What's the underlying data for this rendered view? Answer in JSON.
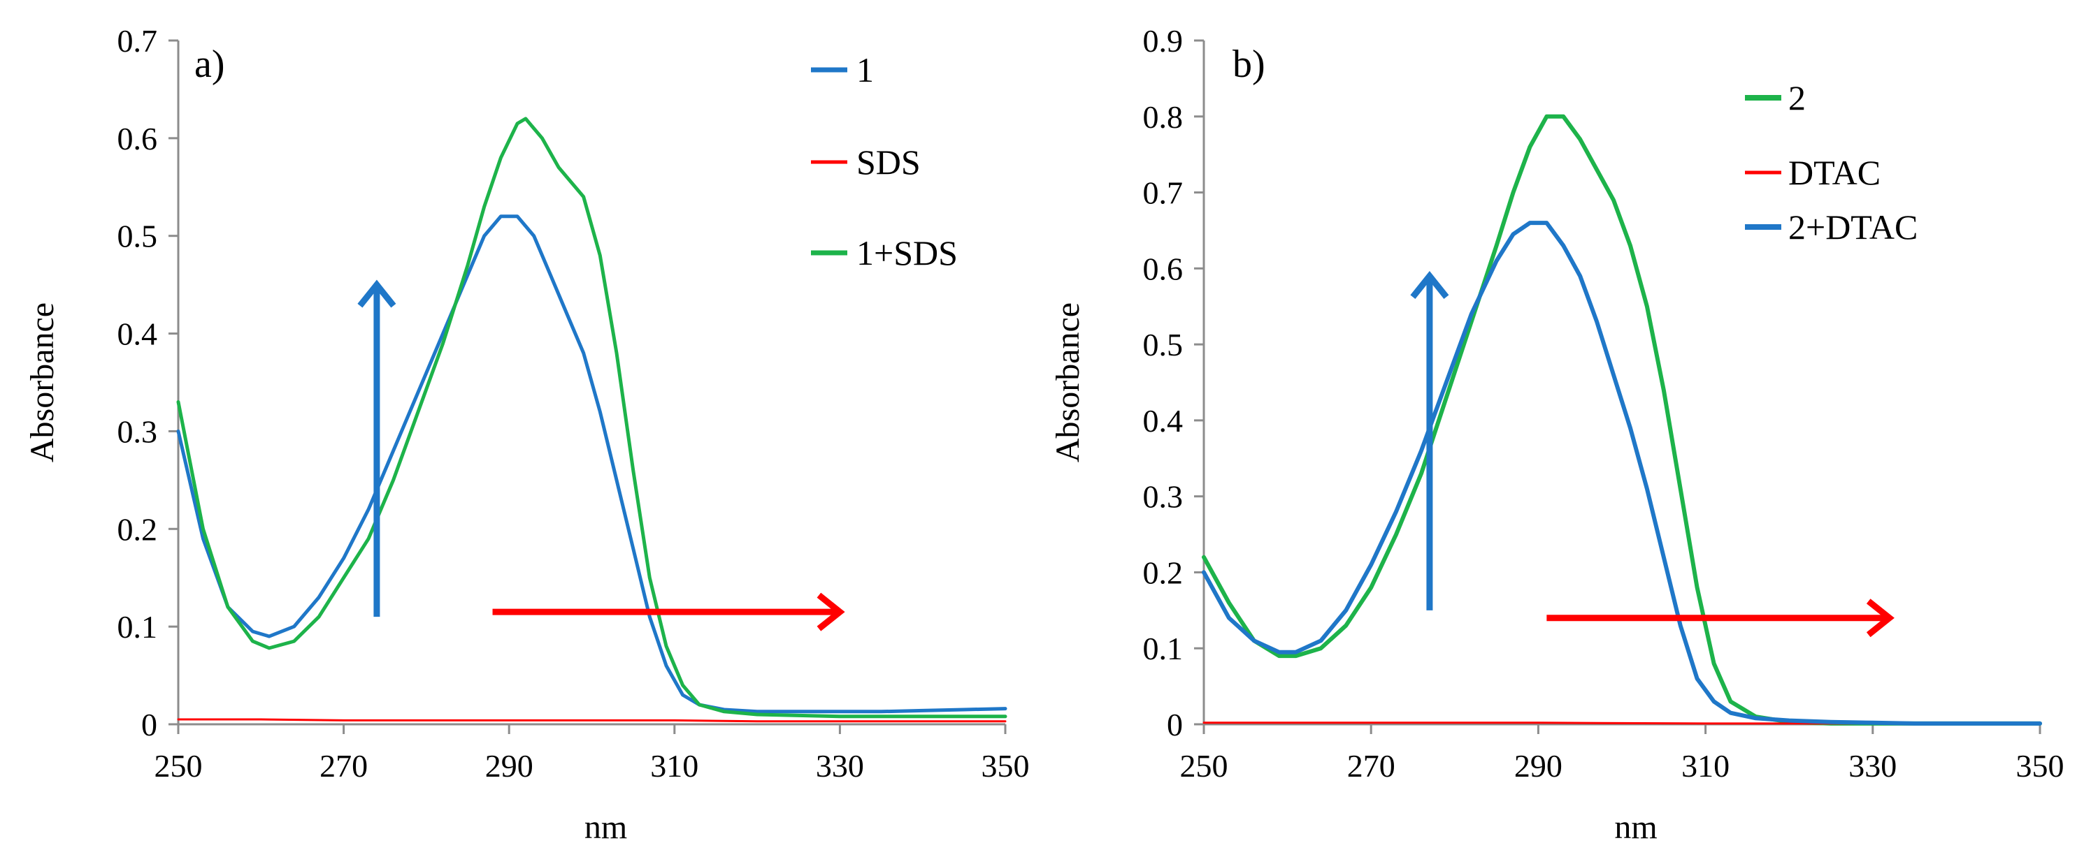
{
  "colors": {
    "blue": "#1f77c8",
    "red": "#ff0000",
    "green": "#1db34a",
    "axis": "#8c8c8c"
  },
  "chart_data": [
    {
      "type": "line",
      "panel_label": "a)",
      "xlabel": "nm",
      "ylabel": "Absorbance",
      "xlim": [
        250,
        350
      ],
      "ylim": [
        0,
        0.7
      ],
      "x_ticks": [
        250,
        270,
        290,
        310,
        330,
        350
      ],
      "x_tick_labels": [
        "250",
        "270",
        "290",
        "310",
        "330",
        "350"
      ],
      "y_ticks": [
        0,
        0.1,
        0.2,
        0.3,
        0.4,
        0.5,
        0.6,
        0.7
      ],
      "y_tick_labels": [
        "0",
        "0.1",
        "0.2",
        "0.3",
        "0.4",
        "0.5",
        "0.6",
        "0.7"
      ],
      "legend_position": "top-right",
      "series": [
        {
          "name": "1",
          "color": "blue",
          "width": 5,
          "x": [
            250,
            253,
            256,
            259,
            261,
            264,
            267,
            270,
            273,
            276,
            279,
            282,
            285,
            287,
            289,
            291,
            293,
            295,
            297,
            299,
            301,
            303,
            305,
            307,
            309,
            311,
            313,
            316,
            320,
            325,
            330,
            335,
            340,
            345,
            350
          ],
          "y": [
            0.3,
            0.19,
            0.12,
            0.095,
            0.09,
            0.1,
            0.13,
            0.17,
            0.22,
            0.28,
            0.34,
            0.4,
            0.46,
            0.5,
            0.52,
            0.52,
            0.5,
            0.46,
            0.42,
            0.38,
            0.32,
            0.25,
            0.18,
            0.11,
            0.06,
            0.03,
            0.02,
            0.015,
            0.013,
            0.013,
            0.013,
            0.013,
            0.014,
            0.015,
            0.016
          ]
        },
        {
          "name": "SDS",
          "color": "red",
          "width": 3,
          "x": [
            250,
            260,
            270,
            280,
            290,
            300,
            310,
            320,
            330,
            340,
            350
          ],
          "y": [
            0.005,
            0.005,
            0.004,
            0.004,
            0.004,
            0.004,
            0.004,
            0.003,
            0.003,
            0.003,
            0.003
          ]
        },
        {
          "name": "1+SDS",
          "color": "green",
          "width": 5,
          "x": [
            250,
            253,
            256,
            259,
            261,
            264,
            267,
            270,
            273,
            276,
            279,
            282,
            285,
            287,
            289,
            291,
            292,
            294,
            296,
            299,
            301,
            303,
            305,
            307,
            309,
            311,
            313,
            316,
            320,
            325,
            330,
            335,
            340,
            345,
            350
          ],
          "y": [
            0.33,
            0.2,
            0.12,
            0.085,
            0.078,
            0.085,
            0.11,
            0.15,
            0.19,
            0.25,
            0.32,
            0.39,
            0.47,
            0.53,
            0.58,
            0.615,
            0.62,
            0.6,
            0.57,
            0.54,
            0.48,
            0.38,
            0.26,
            0.15,
            0.08,
            0.04,
            0.02,
            0.013,
            0.01,
            0.009,
            0.008,
            0.008,
            0.008,
            0.008,
            0.008
          ]
        }
      ],
      "annotations": [
        {
          "type": "arrow-up",
          "color": "blue",
          "x": 274,
          "y_from": 0.11,
          "y_to": 0.45
        },
        {
          "type": "arrow-right",
          "color": "red",
          "y": 0.115,
          "x_from": 288,
          "x_to": 330
        }
      ]
    },
    {
      "type": "line",
      "panel_label": "b)",
      "xlabel": "nm",
      "ylabel": "Absorbance",
      "xlim": [
        250,
        350
      ],
      "ylim": [
        0,
        0.9
      ],
      "x_ticks": [
        250,
        270,
        290,
        310,
        330,
        350
      ],
      "x_tick_labels": [
        "250",
        "270",
        "290",
        "310",
        "330",
        "350"
      ],
      "y_ticks": [
        0,
        0.1,
        0.2,
        0.3,
        0.4,
        0.5,
        0.6,
        0.7,
        0.8,
        0.9
      ],
      "y_tick_labels": [
        "0",
        "0.1",
        "0.2",
        "0.3",
        "0.4",
        "0.5",
        "0.6",
        "0.7",
        "0.8",
        "0.9"
      ],
      "legend_position": "top-right",
      "series": [
        {
          "name": "2",
          "color": "green",
          "width": 6,
          "x": [
            250,
            253,
            256,
            259,
            261,
            264,
            267,
            270,
            273,
            276,
            279,
            282,
            285,
            287,
            289,
            291,
            293,
            295,
            297,
            299,
            301,
            303,
            305,
            307,
            309,
            311,
            313,
            316,
            320,
            325,
            330,
            335,
            340,
            345,
            350
          ],
          "y": [
            0.22,
            0.16,
            0.11,
            0.09,
            0.09,
            0.1,
            0.13,
            0.18,
            0.25,
            0.33,
            0.43,
            0.53,
            0.63,
            0.7,
            0.76,
            0.8,
            0.8,
            0.77,
            0.73,
            0.69,
            0.63,
            0.55,
            0.44,
            0.31,
            0.18,
            0.08,
            0.03,
            0.01,
            0.003,
            0.001,
            0.001,
            0.001,
            0.001,
            0.001,
            0.001
          ]
        },
        {
          "name": "DTAC",
          "color": "red",
          "width": 3,
          "x": [
            250,
            270,
            290,
            310,
            330,
            350
          ],
          "y": [
            0.002,
            0.002,
            0.002,
            0.001,
            0.001,
            0.001
          ]
        },
        {
          "name": "2+DTAC",
          "color": "blue",
          "width": 6,
          "x": [
            250,
            253,
            256,
            259,
            261,
            264,
            267,
            270,
            273,
            276,
            279,
            282,
            285,
            287,
            289,
            291,
            293,
            295,
            297,
            299,
            301,
            303,
            305,
            307,
            309,
            311,
            313,
            316,
            320,
            325,
            330,
            335,
            340,
            345,
            350
          ],
          "y": [
            0.2,
            0.14,
            0.11,
            0.095,
            0.095,
            0.11,
            0.15,
            0.21,
            0.28,
            0.36,
            0.45,
            0.54,
            0.61,
            0.645,
            0.66,
            0.66,
            0.63,
            0.59,
            0.53,
            0.46,
            0.39,
            0.31,
            0.22,
            0.13,
            0.06,
            0.03,
            0.015,
            0.008,
            0.005,
            0.003,
            0.002,
            0.001,
            0.001,
            0.001,
            0.001
          ]
        }
      ],
      "annotations": [
        {
          "type": "arrow-up",
          "color": "blue",
          "x": 277,
          "y_from": 0.15,
          "y_to": 0.59
        },
        {
          "type": "arrow-right",
          "color": "red",
          "y": 0.14,
          "x_from": 291,
          "x_to": 332
        }
      ]
    }
  ]
}
